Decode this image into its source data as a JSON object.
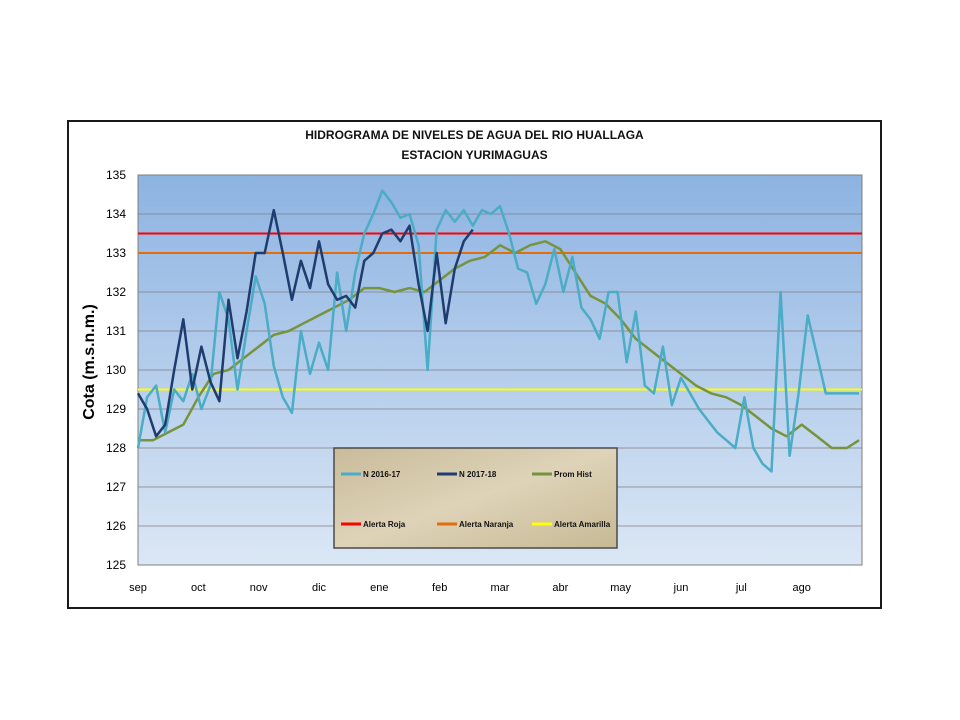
{
  "chart_data": {
    "type": "line",
    "title": "HIDROGRAMA DE NIVELES DE AGUA DEL RIO HUALLAGA",
    "subtitle": "ESTACION YURIMAGUAS",
    "xlabel": "",
    "ylabel": "Cota (m.s.n.m.)",
    "ylim": [
      125,
      135
    ],
    "yticks": [
      125,
      126,
      127,
      128,
      129,
      130,
      131,
      132,
      133,
      134,
      135
    ],
    "xlim": [
      0,
      12
    ],
    "month_labels": [
      "sep",
      "oct",
      "nov",
      "dic",
      "ene",
      "feb",
      "mar",
      "abr",
      "may",
      "jun",
      "jul",
      "ago"
    ],
    "grid": true,
    "legend_position": "bottom-center",
    "series": [
      {
        "name": "N 2016-17",
        "color": "#4bacc6",
        "x": [
          0,
          0.15,
          0.3,
          0.45,
          0.6,
          0.75,
          0.9,
          1.05,
          1.2,
          1.35,
          1.5,
          1.65,
          1.8,
          1.95,
          2.1,
          2.25,
          2.4,
          2.55,
          2.7,
          2.85,
          3.0,
          3.15,
          3.3,
          3.45,
          3.6,
          3.75,
          3.9,
          4.05,
          4.2,
          4.35,
          4.5,
          4.65,
          4.8,
          4.95,
          5.1,
          5.25,
          5.4,
          5.55,
          5.7,
          5.85,
          6.0,
          6.15,
          6.3,
          6.45,
          6.6,
          6.75,
          6.9,
          7.05,
          7.2,
          7.35,
          7.5,
          7.65,
          7.8,
          7.95,
          8.1,
          8.25,
          8.4,
          8.55,
          8.7,
          8.85,
          9.0,
          9.15,
          9.3,
          9.45,
          9.6,
          9.75,
          9.9,
          10.05,
          10.2,
          10.35,
          10.5,
          10.65,
          10.8,
          10.95,
          11.1,
          11.25,
          11.4,
          11.55,
          11.7,
          11.85,
          11.95
        ],
        "values": [
          128.0,
          129.3,
          129.6,
          128.4,
          129.5,
          129.2,
          129.9,
          129.0,
          129.6,
          132.0,
          131.3,
          129.5,
          131.0,
          132.4,
          131.7,
          130.1,
          129.3,
          128.9,
          131.0,
          129.9,
          130.7,
          130.0,
          132.5,
          131.0,
          132.5,
          133.5,
          134.0,
          134.6,
          134.3,
          133.9,
          134.0,
          133.2,
          130.0,
          133.6,
          134.1,
          133.8,
          134.1,
          133.7,
          134.1,
          134.0,
          134.2,
          133.5,
          132.6,
          132.5,
          131.7,
          132.2,
          133.1,
          132.0,
          132.9,
          131.6,
          131.3,
          130.8,
          132.0,
          132.0,
          130.2,
          131.5,
          129.6,
          129.4,
          130.6,
          129.1,
          129.8,
          129.4,
          129.0,
          128.7,
          128.4,
          128.2,
          128.0,
          129.3,
          128.0,
          127.6,
          127.4,
          132.0,
          127.8,
          129.4,
          131.4,
          130.4,
          129.4,
          129.4,
          129.4,
          129.4,
          129.4
        ]
      },
      {
        "name": "N 2017-18",
        "color": "#1f3c6e",
        "x": [
          0,
          0.15,
          0.3,
          0.45,
          0.6,
          0.75,
          0.9,
          1.05,
          1.2,
          1.35,
          1.5,
          1.65,
          1.8,
          1.95,
          2.1,
          2.25,
          2.4,
          2.55,
          2.7,
          2.85,
          3.0,
          3.15,
          3.3,
          3.45,
          3.6,
          3.75,
          3.9,
          4.05,
          4.2,
          4.35,
          4.5,
          4.65,
          4.8,
          4.95,
          5.1,
          5.25,
          5.4,
          5.55
        ],
        "values": [
          129.4,
          129.0,
          128.3,
          128.6,
          130.0,
          131.3,
          129.5,
          130.6,
          129.7,
          129.2,
          131.8,
          130.3,
          131.5,
          133.0,
          133.0,
          134.1,
          133.0,
          131.8,
          132.8,
          132.1,
          133.3,
          132.2,
          131.8,
          131.9,
          131.6,
          132.8,
          133.0,
          133.5,
          133.6,
          133.3,
          133.7,
          132.2,
          131.0,
          133.0,
          131.2,
          132.6,
          133.3,
          133.6
        ]
      },
      {
        "name": "Prom Hist",
        "color": "#77933c",
        "x": [
          0,
          0.25,
          0.5,
          0.75,
          1.0,
          1.25,
          1.5,
          1.75,
          2.0,
          2.25,
          2.5,
          2.75,
          3.0,
          3.25,
          3.5,
          3.75,
          4.0,
          4.25,
          4.5,
          4.75,
          5.0,
          5.25,
          5.5,
          5.75,
          6.0,
          6.25,
          6.5,
          6.75,
          7.0,
          7.25,
          7.5,
          7.75,
          8.0,
          8.25,
          8.5,
          8.75,
          9.0,
          9.25,
          9.5,
          9.75,
          10.0,
          10.25,
          10.5,
          10.75,
          11.0,
          11.25,
          11.5,
          11.75,
          11.95
        ],
        "values": [
          128.2,
          128.2,
          128.4,
          128.6,
          129.3,
          129.9,
          130.0,
          130.3,
          130.6,
          130.9,
          131.0,
          131.2,
          131.4,
          131.6,
          131.8,
          132.1,
          132.1,
          132.0,
          132.1,
          132.0,
          132.3,
          132.6,
          132.8,
          132.9,
          133.2,
          133.0,
          133.2,
          133.3,
          133.1,
          132.5,
          131.9,
          131.7,
          131.3,
          130.8,
          130.5,
          130.2,
          129.9,
          129.6,
          129.4,
          129.3,
          129.1,
          128.8,
          128.5,
          128.3,
          128.6,
          128.3,
          128.0,
          128.0,
          128.2
        ]
      },
      {
        "name": "Alerta Roja",
        "color": "#ff0000",
        "x": [
          0,
          12
        ],
        "values": [
          133.5,
          133.5
        ]
      },
      {
        "name": "Alerta Naranja",
        "color": "#e46c0a",
        "x": [
          0,
          12
        ],
        "values": [
          133.0,
          133.0
        ]
      },
      {
        "name": "Alerta Amarilla",
        "color": "#ffff00",
        "x": [
          0,
          12
        ],
        "values": [
          129.5,
          129.5
        ]
      }
    ]
  }
}
